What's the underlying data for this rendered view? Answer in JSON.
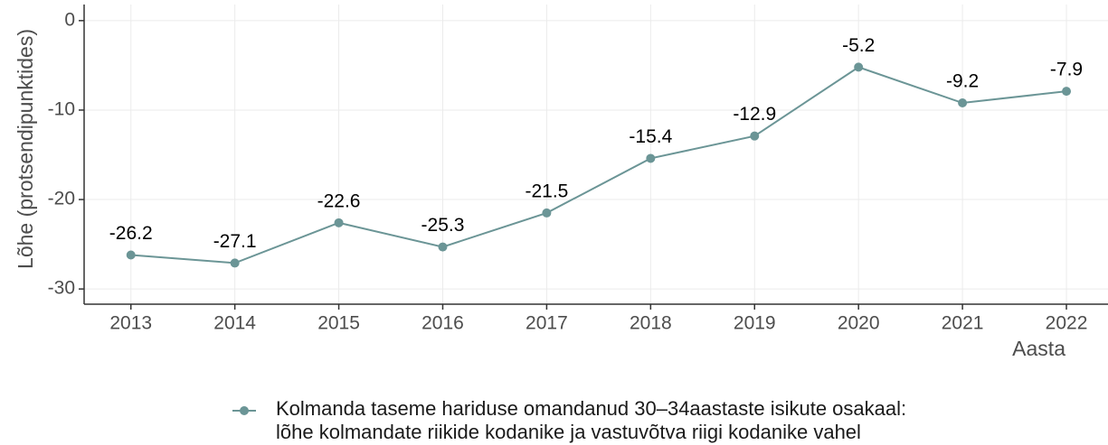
{
  "chart_data": {
    "type": "line",
    "y_label": "Lõhe (protsendipunktides)",
    "x_label": "Aasta",
    "x": [
      2013,
      2014,
      2015,
      2016,
      2017,
      2018,
      2019,
      2020,
      2021,
      2022
    ],
    "series": [
      {
        "name": "Kolmanda taseme hariduse omandanud 30–34aastaste isikute osakaal:\nlõhe kolmandate riikide kodanike ja vastuvõtva riigi kodanike vahel",
        "color": "#6b9596",
        "values": [
          -26.2,
          -27.1,
          -22.6,
          -25.3,
          -21.5,
          -15.4,
          -12.9,
          -5.2,
          -9.2,
          -7.9
        ]
      }
    ],
    "xlim": [
      2012.55,
      2022.4
    ],
    "xticks": [
      2013,
      2014,
      2015,
      2016,
      2017,
      2018,
      2019,
      2020,
      2021,
      2022
    ],
    "ylim": [
      -31.7,
      1.8
    ],
    "yticks": [
      -30,
      -20,
      -10,
      0
    ],
    "grid": true,
    "legend": "bottom"
  }
}
